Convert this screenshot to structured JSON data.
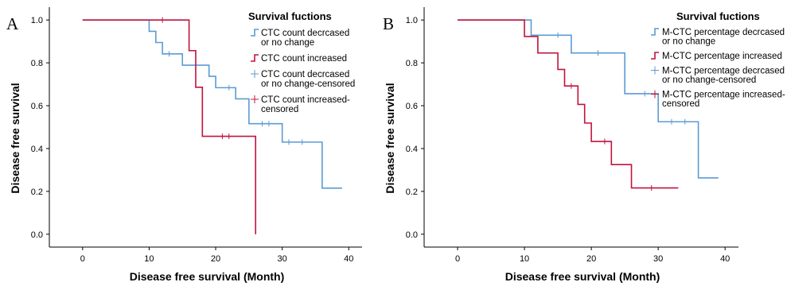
{
  "chart_data": [
    {
      "type": "line",
      "panel_label": "A",
      "xlabel": "Disease free survival (Month)",
      "ylabel": "Disease free survival",
      "xlim": [
        -5,
        42
      ],
      "ylim": [
        -0.06,
        1.06
      ],
      "xticks": [
        "0",
        "10",
        "20",
        "30",
        "40"
      ],
      "yticks": [
        "0.0",
        "0.2",
        "0.4",
        "0.6",
        "0.8",
        "1.0"
      ],
      "grid": false,
      "legend_title": "Survival fuctions",
      "legend_position": "top-right",
      "legend": [
        {
          "lines": [
            "CTC count decrcased",
            "or no change"
          ],
          "color": "#5B9BD5",
          "kind": "line"
        },
        {
          "lines": [
            "CTC count increased"
          ],
          "color": "#C0143C",
          "kind": "line"
        },
        {
          "lines": [
            "CTC count decrcased",
            "or no change-censored"
          ],
          "color": "#5B9BD5",
          "kind": "censor"
        },
        {
          "lines": [
            "CTC count increased-",
            "censored"
          ],
          "color": "#C0143C",
          "kind": "censor"
        }
      ],
      "series": [
        {
          "color": "#5B9BD5",
          "x": [
            0,
            10,
            11,
            12,
            15,
            19,
            20,
            23,
            25,
            30,
            36,
            39
          ],
          "y": [
            1.0,
            0.947,
            0.895,
            0.842,
            0.789,
            0.737,
            0.684,
            0.632,
            0.516,
            0.43,
            0.215,
            0.215
          ],
          "censored": [
            [
              13,
              0.842
            ],
            [
              22,
              0.684
            ],
            [
              27,
              0.516
            ],
            [
              28,
              0.516
            ],
            [
              31,
              0.43
            ],
            [
              33,
              0.43
            ]
          ]
        },
        {
          "color": "#C0143C",
          "x": [
            0,
            16,
            17,
            18,
            26,
            26
          ],
          "y": [
            1.0,
            0.857,
            0.686,
            0.457,
            0.457,
            0.0
          ],
          "censored": [
            [
              12,
              1.0
            ],
            [
              21,
              0.457
            ],
            [
              22,
              0.457
            ]
          ]
        }
      ]
    },
    {
      "type": "line",
      "panel_label": "B",
      "xlabel": "Disease free survival (Month)",
      "ylabel": "Disease free survival",
      "xlim": [
        -5,
        42
      ],
      "ylim": [
        -0.06,
        1.06
      ],
      "xticks": [
        "0",
        "10",
        "20",
        "30",
        "40"
      ],
      "yticks": [
        "0.0",
        "0.2",
        "0.4",
        "0.6",
        "0.8",
        "1.0"
      ],
      "grid": false,
      "legend_title": "Survival fuctions",
      "legend_position": "top-right",
      "legend": [
        {
          "lines": [
            "M-CTC percentage decrcased",
            "or no change"
          ],
          "color": "#5B9BD5",
          "kind": "line"
        },
        {
          "lines": [
            "M-CTC percentage increased"
          ],
          "color": "#C0143C",
          "kind": "line"
        },
        {
          "lines": [
            "M-CTC percentage decrcased",
            "or no change-censored"
          ],
          "color": "#5B9BD5",
          "kind": "censor"
        },
        {
          "lines": [
            "M-CTC percentage increased-",
            "censored"
          ],
          "color": "#C0143C",
          "kind": "censor"
        }
      ],
      "series": [
        {
          "color": "#5B9BD5",
          "x": [
            0,
            11,
            17,
            25,
            30,
            36,
            39
          ],
          "y": [
            1.0,
            0.929,
            0.846,
            0.656,
            0.525,
            0.263,
            0.263
          ],
          "censored": [
            [
              15,
              0.929
            ],
            [
              21,
              0.846
            ],
            [
              28,
              0.656
            ],
            [
              32,
              0.525
            ],
            [
              34,
              0.525
            ]
          ]
        },
        {
          "color": "#C0143C",
          "x": [
            0,
            10,
            12,
            15,
            16,
            18,
            19,
            20,
            23,
            26,
            33
          ],
          "y": [
            1.0,
            0.923,
            0.846,
            0.769,
            0.692,
            0.606,
            0.519,
            0.433,
            0.325,
            0.216,
            0.216
          ],
          "censored": [
            [
              17,
              0.692
            ],
            [
              22,
              0.433
            ],
            [
              29,
              0.216
            ]
          ]
        }
      ]
    }
  ]
}
